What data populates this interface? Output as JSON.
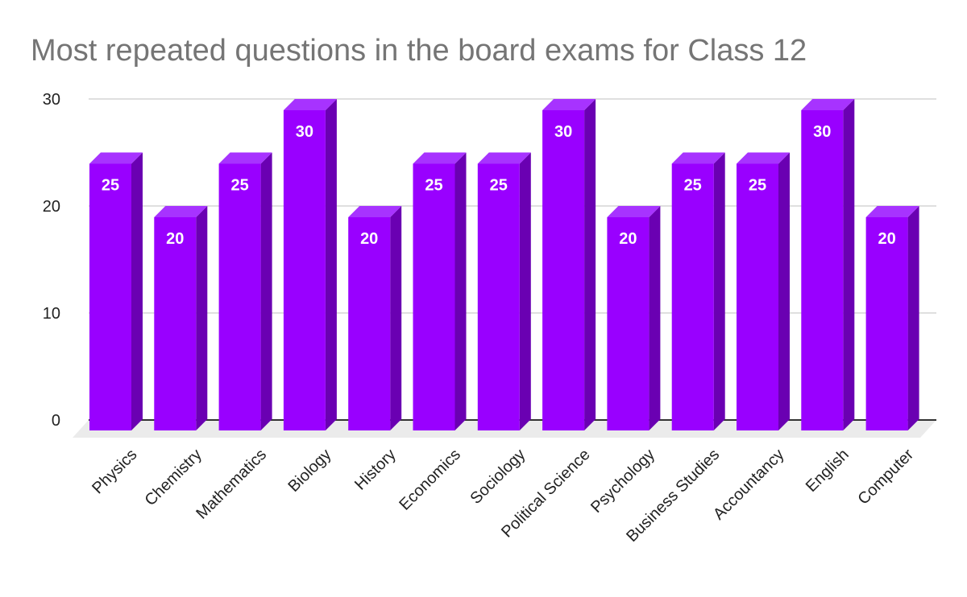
{
  "chart_data": {
    "type": "bar",
    "title": "Most repeated questions in the board exams for Class 12",
    "xlabel": "",
    "ylabel": "",
    "categories": [
      "Physics",
      "Chemistry",
      "Mathematics",
      "Biology",
      "History",
      "Economics",
      "Sociology",
      "Political Science",
      "Psychology",
      "Business Studies",
      "Accountancy",
      "English",
      "Computer"
    ],
    "values": [
      25,
      20,
      25,
      30,
      20,
      25,
      25,
      30,
      20,
      25,
      25,
      30,
      20
    ],
    "yticks": [
      0,
      10,
      20,
      30
    ],
    "ylim": [
      0,
      30
    ],
    "grid": true,
    "legend": "none",
    "style": "3d",
    "colors": {
      "bar_front": "#9900ff",
      "bar_side": "#6a00b2",
      "bar_top": "#a733ff",
      "floor": "#ebebeb",
      "grid": "#cccccc",
      "axis": "#333333",
      "title": "#757575"
    }
  }
}
